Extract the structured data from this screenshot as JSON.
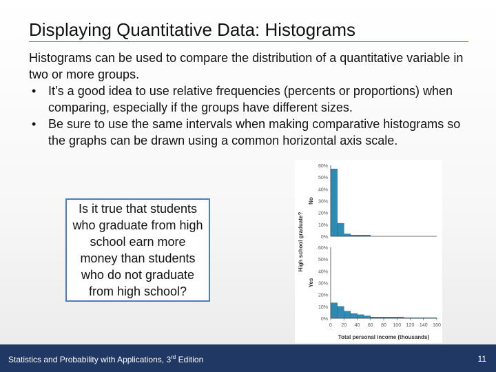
{
  "slide": {
    "title": "Displaying Quantitative Data: Histograms",
    "intro": "Histograms can be used to compare the distribution of a quantitative variable in two or more groups.",
    "bullets": [
      "It’s a good idea to use relative frequencies (percents or proportions) when comparing, especially if the groups have different sizes.",
      "Be sure to use the same intervals when making comparative histograms so the graphs can be drawn using a common horizontal axis scale."
    ],
    "bullet_symbol": "•",
    "callout": "Is it true that students who graduate from high school earn more money than students who do not graduate from high school?"
  },
  "footer": {
    "book": "Statistics and Probability with Applications, 3",
    "edition_sup": "rd",
    "edition_suffix": " Edition",
    "page_number": "11"
  },
  "chart_data": {
    "type": "bar",
    "title": "",
    "xlabel": "Total personal income (thousands)",
    "ylabel": "High school graduate?",
    "x_ticks": [
      "0",
      "20",
      "40",
      "60",
      "80",
      "100",
      "120",
      "140",
      "160"
    ],
    "y_ticks": [
      "0%",
      "10%",
      "20%",
      "30%",
      "40%",
      "50%",
      "60%"
    ],
    "ylim": [
      0,
      60
    ],
    "bin_width": 10,
    "categories": [
      "0-10",
      "10-20",
      "20-30",
      "30-40",
      "40-50",
      "50-60",
      "60-70",
      "70-80",
      "80-90",
      "90-100",
      "100-110",
      "110-120",
      "120-130",
      "130-140",
      "140-150",
      "150-160"
    ],
    "series": [
      {
        "name": "No",
        "values": [
          57,
          11,
          2,
          1,
          1,
          1,
          0,
          0,
          0,
          0,
          0,
          0,
          0,
          0,
          0,
          0
        ]
      },
      {
        "name": "Yes",
        "values": [
          13,
          10,
          6,
          4,
          3,
          2,
          1,
          1,
          1,
          1,
          1,
          0.5,
          0.5,
          0.5,
          0.5,
          0.5
        ]
      }
    ],
    "bar_color": "#2e8bb3",
    "grid": false,
    "legend": "panel labels on left"
  }
}
